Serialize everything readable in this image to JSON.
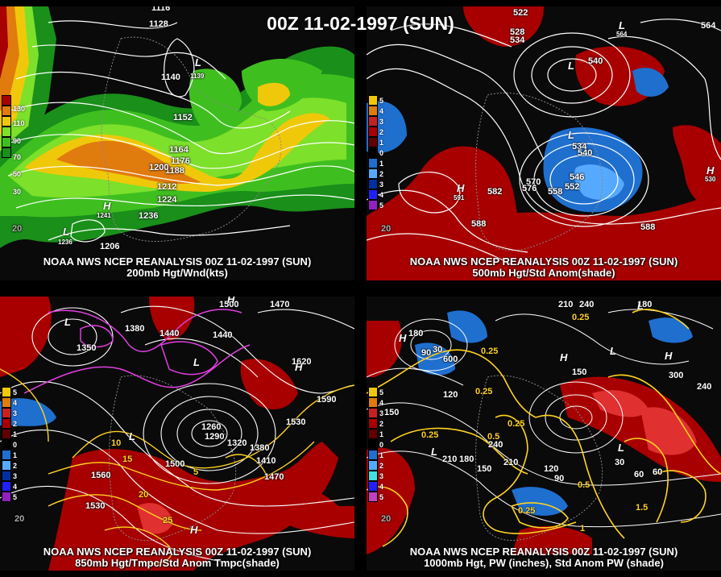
{
  "title": "00Z 11-02-1997 (SUN)",
  "colors": {
    "green_dark": "#1a8f1a",
    "green": "#3fbf1f",
    "green_light": "#7de02a",
    "yellow": "#f0c80a",
    "orange": "#e07b0e",
    "red": "#a80000",
    "blue": "#1f6fcf",
    "blue_light": "#55aaff",
    "contour": "#ffffff",
    "yellow_contour": "#ffd21f",
    "magenta": "#e040e0"
  },
  "panels": [
    {
      "id": "p200",
      "caption1": "NOAA NWS NCEP REANALYSIS 00Z 11-02-1997 (SUN)",
      "caption2": "200mb Hgt/Wnd(kts)",
      "legend": [
        "130",
        "110",
        "90",
        "70",
        "50",
        "30"
      ],
      "labels": [
        "1116",
        "1128",
        "1140",
        "1152",
        "1164",
        "1176",
        "1188",
        "1200",
        "1212",
        "1224",
        "1236",
        "1236",
        "1241",
        "1206",
        "1139",
        "20",
        "20"
      ],
      "lows": [
        "L",
        "L",
        "H"
      ]
    },
    {
      "id": "p500",
      "caption1": "NOAA NWS NCEP REANALYSIS 00Z 11-02-1997 (SUN)",
      "caption2": "500mb Hgt/Std Anom(shade)",
      "legend": [
        "5",
        "4",
        "3",
        "2",
        "1",
        "0",
        "1",
        "2",
        "3",
        "4",
        "5"
      ],
      "labels": [
        "522",
        "528",
        "534",
        "540",
        "534",
        "540",
        "546",
        "552",
        "558",
        "564",
        "570",
        "576",
        "582",
        "588",
        "588",
        "591",
        "530",
        "564",
        "20"
      ],
      "lows": [
        "L",
        "L",
        "H",
        "H",
        "L"
      ]
    },
    {
      "id": "p850",
      "caption1": "NOAA NWS NCEP REANALYSIS 00Z 11-02-1997 (SUN)",
      "caption2": "850mb Hgt/Tmpc/Std Anom Tmpc(shade)",
      "legend": [
        "5",
        "4",
        "3",
        "2",
        "1",
        "0",
        "1",
        "2",
        "3",
        "4",
        "5"
      ],
      "labels": [
        "1380",
        "1440",
        "1440",
        "1470",
        "1500",
        "1530",
        "1560",
        "1590",
        "1620",
        "1410",
        "1380",
        "1350",
        "1320",
        "1290",
        "1260",
        "1530",
        "1470",
        "1500",
        "20"
      ],
      "yellow_labels": [
        "10",
        "15",
        "20",
        "25",
        "5"
      ],
      "lows": [
        "H",
        "L",
        "L",
        "L",
        "H",
        "H"
      ]
    },
    {
      "id": "p1000",
      "caption1": "NOAA NWS NCEP REANALYSIS 00Z 11-02-1997 (SUN)",
      "caption2": "1000mb Hgt, PW (inches), Std Anom PW (shade)",
      "legend": [
        "5",
        "4",
        "3",
        "2",
        "1",
        "0",
        "1",
        "2",
        "3",
        "4",
        "5"
      ],
      "labels": [
        "180",
        "210",
        "240",
        "180",
        "150",
        "90",
        "30",
        "60",
        "600",
        "120",
        "150",
        "180",
        "210",
        "240",
        "210",
        "150",
        "120",
        "90",
        "60",
        "30",
        "300",
        "240",
        "20"
      ],
      "yellow_labels": [
        "0.25",
        "0.25",
        "0.25",
        "0.25",
        "0.5",
        "0.25",
        "0.5",
        "1",
        "1.5",
        "0.25"
      ],
      "lows": [
        "L",
        "H",
        "L",
        "L",
        "L",
        "H",
        "H"
      ]
    }
  ]
}
